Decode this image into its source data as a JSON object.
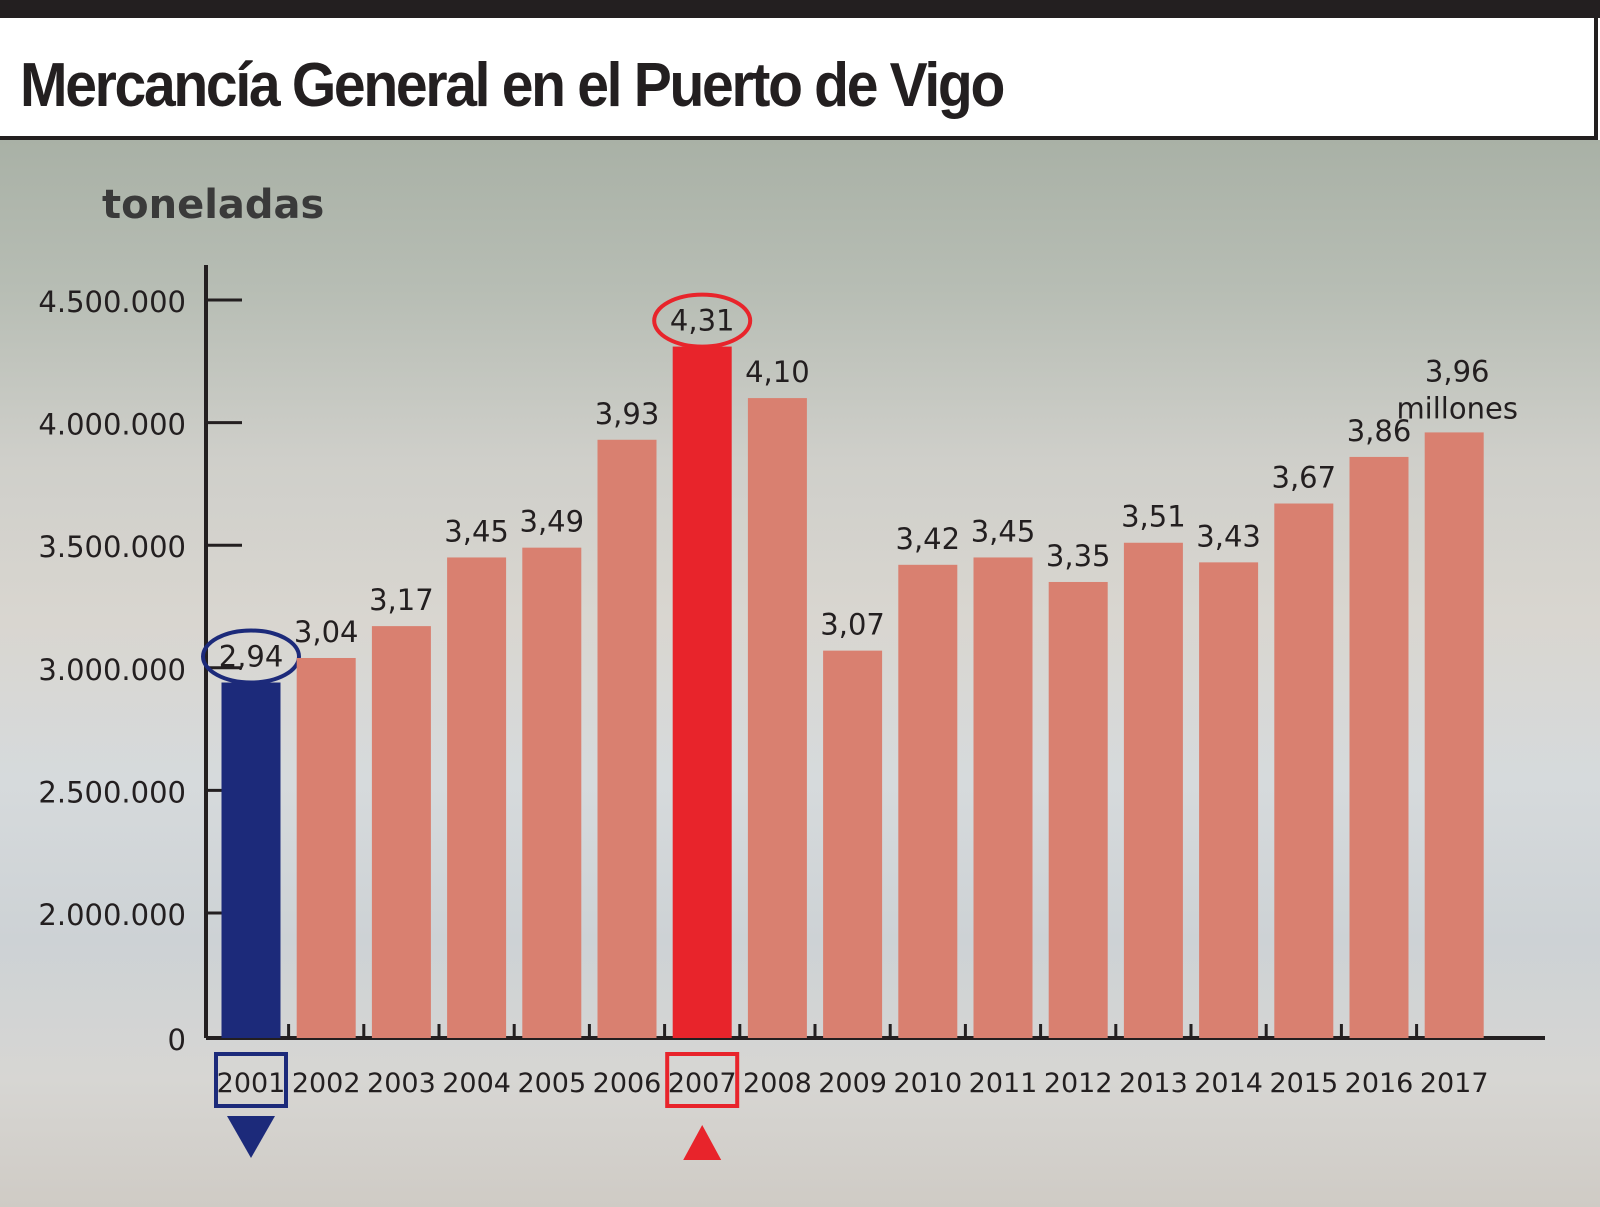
{
  "title": "Mercancía General en el Puerto de Vigo",
  "chart_data": {
    "type": "bar",
    "title": "Mercancía General en el Puerto de Vigo",
    "ylabel": "toneladas",
    "xlabel": "",
    "ylim": [
      0,
      4500000
    ],
    "yaxis_breaks": [
      0,
      2000000
    ],
    "yticks": [
      0,
      2000000,
      2500000,
      3000000,
      3500000,
      4000000,
      4500000
    ],
    "ytick_labels": [
      "0",
      "2.000.000",
      "2.500.000",
      "3.000.000",
      "3.500.000",
      "4.000.000",
      "4.500.000"
    ],
    "categories": [
      "2001",
      "2002",
      "2003",
      "2004",
      "2005",
      "2006",
      "2007",
      "2008",
      "2009",
      "2010",
      "2011",
      "2012",
      "2013",
      "2014",
      "2015",
      "2016",
      "2017"
    ],
    "values": [
      2.94,
      3.04,
      3.17,
      3.45,
      3.49,
      3.93,
      4.31,
      4.1,
      3.07,
      3.42,
      3.45,
      3.35,
      3.51,
      3.43,
      3.67,
      3.86,
      3.96
    ],
    "value_labels": [
      "2,94",
      "3,04",
      "3,17",
      "3,45",
      "3,49",
      "3,93",
      "4,31",
      "4,10",
      "3,07",
      "3,42",
      "3,45",
      "3,35",
      "3,51",
      "3,43",
      "3,67",
      "3,86",
      "3,96"
    ],
    "last_label_suffix": "millones",
    "units": "millones de toneladas",
    "highlights": [
      {
        "category": "2001",
        "color": "#1c2a7a",
        "marker": "down-triangle"
      },
      {
        "category": "2007",
        "color": "#e8242b",
        "marker": "up-triangle"
      }
    ],
    "default_color": "#d98070",
    "grid": false
  }
}
